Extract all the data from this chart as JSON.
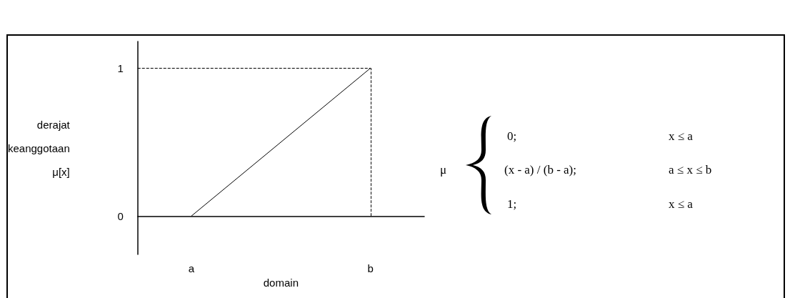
{
  "chart_data": {
    "type": "line",
    "xlabel": "domain",
    "ylabel": "derajat\nkeanggotaan\nμ[x]",
    "categories": [
      null,
      null,
      null,
      "a",
      null,
      null,
      null,
      null,
      null,
      null,
      null,
      null,
      null,
      "b",
      null,
      null,
      null
    ],
    "series": [
      {
        "color": "#000000",
        "values": [
          null,
          null,
          null,
          0,
          null,
          null,
          null,
          null,
          null,
          null,
          null,
          null,
          null,
          1,
          null,
          null,
          null
        ]
      }
    ],
    "ylim": [
      -0.26,
      1.18
    ],
    "yticks": [
      0,
      1
    ],
    "ref_lines": [
      {
        "axis": "y",
        "value": 1,
        "line_style": "dashed",
        "color": "#000000"
      },
      {
        "axis": "x",
        "value": "b",
        "line_style": "dashed",
        "color": "#000000"
      }
    ],
    "marker": "none",
    "line_style": "solid",
    "grid": false,
    "annotations": [
      "μ",
      "0;",
      "(x - a) / (b - a);",
      "1;",
      "x ≤ a",
      "a ≤ x ≤ b",
      "x ≤ a"
    ]
  }
}
